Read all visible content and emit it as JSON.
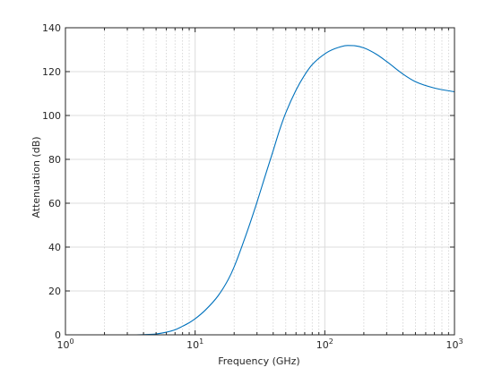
{
  "chart_data": {
    "type": "line",
    "xlabel": "Frequency (GHz)",
    "ylabel": "Attenuation (dB)",
    "x_scale": "log",
    "xlim": [
      1,
      1000
    ],
    "ylim": [
      0,
      140
    ],
    "x_ticks": [
      {
        "base": "10",
        "exp": "0",
        "value": 1
      },
      {
        "base": "10",
        "exp": "1",
        "value": 10
      },
      {
        "base": "10",
        "exp": "2",
        "value": 100
      },
      {
        "base": "10",
        "exp": "3",
        "value": 1000
      }
    ],
    "y_ticks": [
      "0",
      "20",
      "40",
      "60",
      "80",
      "100",
      "120",
      "140"
    ],
    "grid": true,
    "minor_grid": true,
    "line_color": "#0072bd",
    "series": [
      {
        "x": [
          1,
          2,
          3,
          4,
          5,
          6,
          7,
          8,
          9,
          10,
          12,
          15,
          18,
          20,
          25,
          30,
          35,
          40,
          45,
          50,
          60,
          70,
          80,
          100,
          120,
          150,
          170,
          200,
          250,
          300,
          400,
          500,
          700,
          1000
        ],
        "values": [
          0,
          0,
          0,
          0.1,
          0.4,
          1.2,
          2.3,
          3.9,
          5.5,
          7.3,
          11.3,
          17.7,
          25.2,
          31,
          46.5,
          60.5,
          73.2,
          84,
          93.7,
          101.2,
          111.6,
          118.5,
          123.2,
          128.1,
          130.5,
          131.9,
          131.8,
          130.8,
          127.9,
          124.6,
          118.9,
          115.4,
          112.5,
          110.8
        ]
      }
    ]
  }
}
